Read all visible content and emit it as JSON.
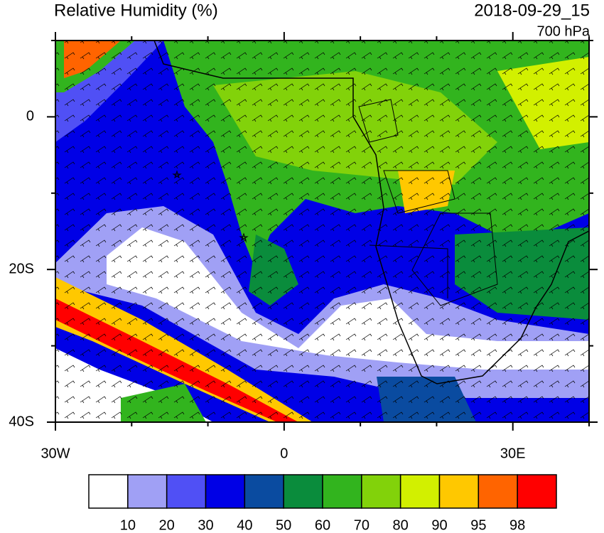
{
  "header": {
    "title": "Relative Humidity (%)",
    "time": "2018-09-29_15",
    "level": "700 hPa"
  },
  "map": {
    "lon_range": [
      -30,
      40
    ],
    "lat_range": [
      -40,
      10
    ],
    "xticks": [
      {
        "value": -30,
        "label": "30W"
      },
      0,
      {
        "value": 30,
        "label": "30E"
      }
    ],
    "yticks": [
      0,
      {
        "value": -20,
        "label": "20S"
      },
      {
        "value": -40,
        "label": "40S"
      }
    ],
    "x_minor_ticks": [
      -20,
      -10,
      10,
      20,
      40
    ],
    "y_minor_ticks": [
      10,
      -10,
      -30
    ]
  },
  "colorbar": {
    "levels": [
      10,
      20,
      30,
      40,
      50,
      60,
      70,
      80,
      90,
      95,
      98
    ],
    "colors": [
      "#ffffff",
      "#a0a0f5",
      "#5050f5",
      "#0000e6",
      "#0a4ba0",
      "#0a8c3c",
      "#32b41e",
      "#82d20a",
      "#d2f000",
      "#ffc800",
      "#ff6400",
      "#ff0000"
    ]
  }
}
